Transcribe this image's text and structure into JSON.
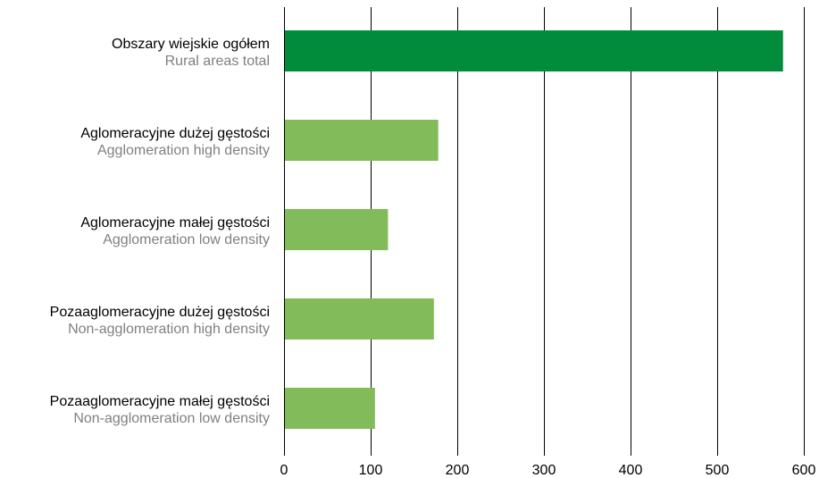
{
  "chart_data": {
    "type": "bar",
    "orientation": "horizontal",
    "categories": [
      {
        "pl": "Obszary wiejskie ogółem",
        "en": "Rural areas total"
      },
      {
        "pl": "Aglomeracyjne dużej gęstości",
        "en": "Agglomeration high density"
      },
      {
        "pl": "Aglomeracyjne małej gęstości",
        "en": "Agglomeration low density"
      },
      {
        "pl": "Pozaaglomeracyjne dużej gęstości",
        "en": "Non-agglomeration high density"
      },
      {
        "pl": "Pozaaglomeracyjne małej gęstości",
        "en": "Non-agglomeration low density"
      }
    ],
    "values": [
      576,
      178,
      120,
      173,
      105
    ],
    "xlim": [
      0,
      600
    ],
    "xticks": [
      0,
      100,
      200,
      300,
      400,
      500,
      600
    ],
    "grid": "vertical",
    "colors": {
      "highlight": "#008c3a",
      "bar": "#82bc5a",
      "grid": "#000000",
      "label_secondary": "#808080"
    }
  }
}
